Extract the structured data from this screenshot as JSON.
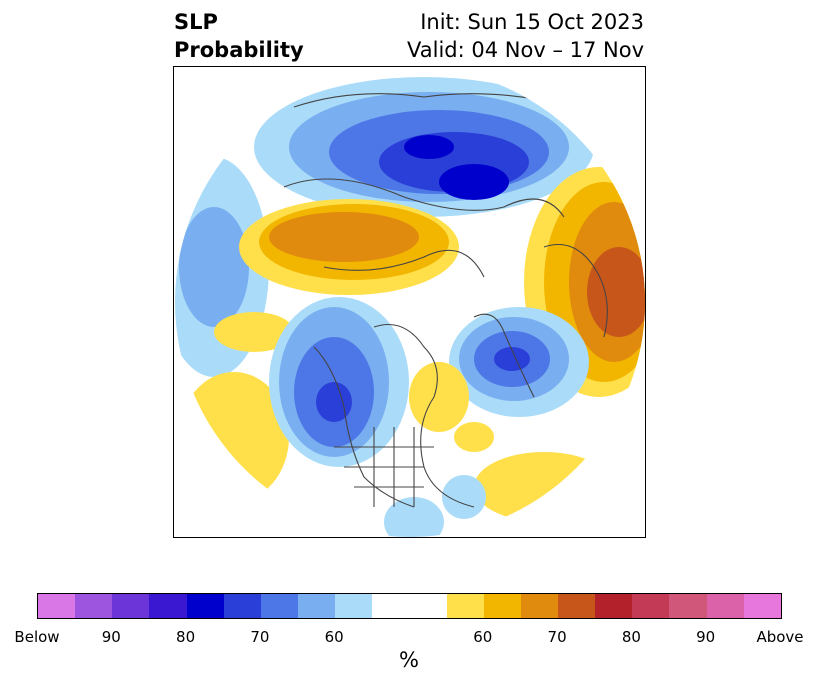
{
  "title": {
    "left_line1": "SLP",
    "left_line2": "Probability",
    "right_line1": "Init: Sun 15 Oct 2023",
    "right_line2": "Valid: 04 Nov – 17 Nov"
  },
  "colorbar": {
    "label": "%",
    "colors": [
      "#d977e6",
      "#9d55e0",
      "#6b35d8",
      "#3a18d2",
      "#0000cc",
      "#2a3ed8",
      "#4d77e6",
      "#79aef0",
      "#aadcfa",
      "#ffffff",
      "#ffe04a",
      "#f2b600",
      "#e08a0e",
      "#c7561a",
      "#b3222a",
      "#c23a55",
      "#d0567a",
      "#db62a8",
      "#e777dc"
    ],
    "ticks": [
      "Below",
      "90",
      "80",
      "70",
      "60",
      "60",
      "70",
      "80",
      "90",
      "Above"
    ]
  },
  "map": {
    "projection": "north-polar-stereographic",
    "variable": "sea-level-pressure-probability"
  }
}
